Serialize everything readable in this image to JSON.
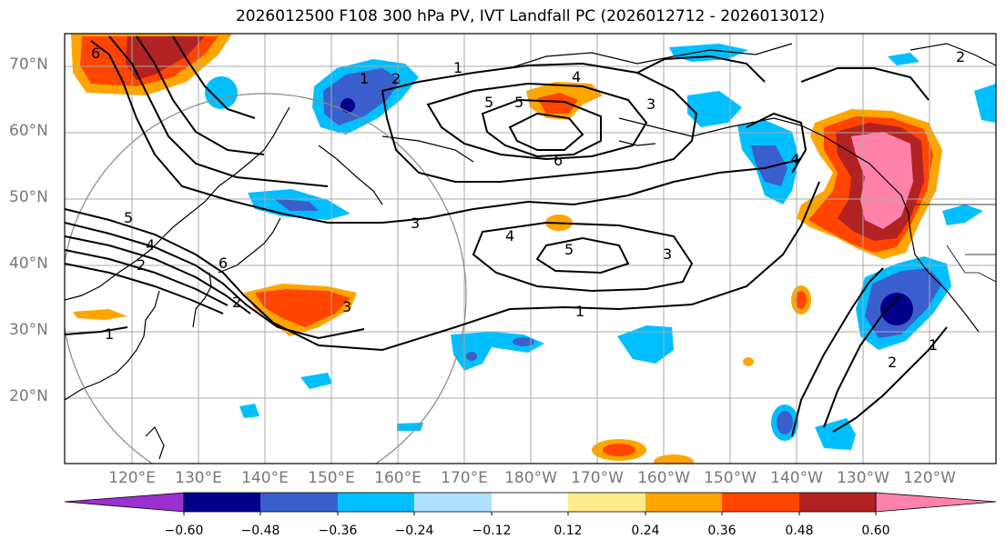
{
  "title": "2026012500 F108 300 hPa PV, IVT Landfall PC (2026012712 - 2026013012)",
  "lat_labels": [
    "70°N",
    "60°N",
    "50°N",
    "40°N",
    "30°N",
    "20°N"
  ],
  "lon_labels": [
    "120°E",
    "130°E",
    "140°E",
    "150°E",
    "160°E",
    "170°E",
    "180°W",
    "170°W",
    "160°W",
    "150°W",
    "140°W",
    "130°W",
    "120°W"
  ],
  "colorbar": {
    "labels": [
      "−0.60",
      "−0.48",
      "−0.36",
      "−0.24",
      "−0.12",
      "0.12",
      "0.24",
      "0.36",
      "0.48",
      "0.60"
    ],
    "colors": [
      "#9b30d0",
      "#00008b",
      "#3a5fcd",
      "#00bfff",
      "#b0e2ff",
      "#ffffff",
      "#ffec8b",
      "#ffa500",
      "#ff4500",
      "#b22222",
      "#ff82ab"
    ]
  },
  "contour_labels": [
    "1",
    "2",
    "4",
    "5",
    "6",
    "3",
    "2",
    "3",
    "4",
    "5",
    "6",
    "1",
    "2",
    "6",
    "3",
    "4",
    "5",
    "3",
    "1",
    "4",
    "2",
    "1",
    "2",
    "5",
    "1"
  ],
  "colors": {
    "blue": "#3a5fcd",
    "darkblue": "#00008b",
    "cyan": "#00bfff",
    "lightblue": "#b0e2ff",
    "orange": "#ffa500",
    "red": "#ff4500",
    "darkred": "#b22222",
    "pink": "#ff82ab"
  }
}
